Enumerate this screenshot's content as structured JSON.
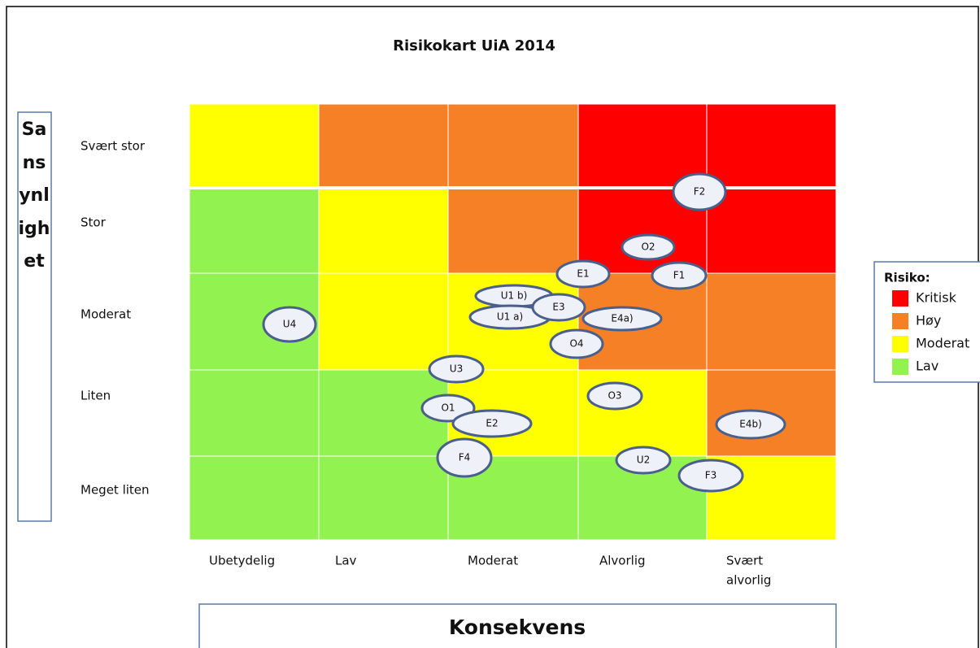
{
  "title": "Risikokart UiA 2014",
  "y_axis_label": "Sansynlighet",
  "x_axis_label": "Konsekvens",
  "rows": [
    "Svært stor",
    "Stor",
    "Moderat",
    "Liten",
    "Meget liten"
  ],
  "columns": [
    {
      "lines": [
        "Ubetydelig"
      ]
    },
    {
      "lines": [
        "Lav"
      ]
    },
    {
      "lines": [
        "Moderat"
      ]
    },
    {
      "lines": [
        "Alvorlig"
      ]
    },
    {
      "lines": [
        "Svært",
        "alvorlig"
      ]
    }
  ],
  "legend": {
    "title": "Risiko:",
    "items": [
      {
        "label": "Kritisk",
        "color": "#ff0000"
      },
      {
        "label": "Høy",
        "color": "#f58025"
      },
      {
        "label": "Moderat",
        "color": "#ffff00"
      },
      {
        "label": "Lav",
        "color": "#92f24f"
      }
    ]
  },
  "risks": [
    "F2",
    "O2",
    "E1",
    "F1",
    "U1 b)",
    "U1 a)",
    "E3",
    "E4a)",
    "O4",
    "U4",
    "U3",
    "O3",
    "O1",
    "E2",
    "E4b)",
    "F4",
    "U2",
    "F3"
  ]
}
